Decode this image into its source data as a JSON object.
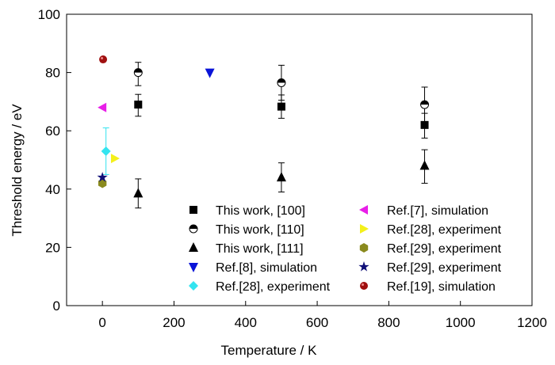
{
  "chart_data": {
    "type": "scatter",
    "xlabel": "Temperature / K",
    "ylabel": "Threshold energy / eV",
    "xlim": [
      -100,
      1200
    ],
    "ylim": [
      0,
      100
    ],
    "xticks": [
      0,
      200,
      400,
      600,
      800,
      1000,
      1200
    ],
    "yticks": [
      0,
      20,
      40,
      60,
      80,
      100
    ],
    "grid": false,
    "legend_placement": "bottom-right",
    "series": [
      {
        "name": "This work, [100]",
        "marker": "square",
        "color": "#000000",
        "points": [
          {
            "x": 100,
            "y": 69,
            "lo": 65,
            "hi": 72.5
          },
          {
            "x": 500,
            "y": 68.3,
            "lo": 64.3,
            "hi": 72.3
          },
          {
            "x": 900,
            "y": 62,
            "lo": 57.5,
            "hi": 66
          }
        ]
      },
      {
        "name": "This work, [110]",
        "marker": "halfcircle",
        "color": "#000000",
        "points": [
          {
            "x": 100,
            "y": 80,
            "lo": 75.5,
            "hi": 83.5
          },
          {
            "x": 500,
            "y": 76.5,
            "lo": 70.5,
            "hi": 82.5
          },
          {
            "x": 900,
            "y": 69,
            "lo": 63,
            "hi": 75
          }
        ]
      },
      {
        "name": "This work, [111]",
        "marker": "triangle-up",
        "color": "#000000",
        "points": [
          {
            "x": 100,
            "y": 38.5,
            "lo": 33.5,
            "hi": 43.5
          },
          {
            "x": 500,
            "y": 44,
            "lo": 39,
            "hi": 49
          },
          {
            "x": 900,
            "y": 48,
            "lo": 42,
            "hi": 53.5
          }
        ]
      },
      {
        "name": "Ref.[8], simulation",
        "marker": "triangle-down",
        "color": "#0a14d8",
        "points": [
          {
            "x": 300,
            "y": 80
          }
        ]
      },
      {
        "name": "Ref.[28], experiment",
        "marker": "diamond",
        "color": "#33e4f0",
        "points": [
          {
            "x": 10,
            "y": 53,
            "lo": 45,
            "hi": 61
          }
        ]
      },
      {
        "name": "Ref.[7], simulation",
        "marker": "triangle-left",
        "color": "#e81ee8",
        "points": [
          {
            "x": 0,
            "y": 68
          }
        ]
      },
      {
        "name": "Ref.[28], experiment",
        "marker": "triangle-right",
        "color": "#f4f01a",
        "points": [
          {
            "x": 35,
            "y": 50.5
          }
        ]
      },
      {
        "name": "Ref.[29], experiment",
        "marker": "hexagon",
        "color": "#8a8a1e",
        "points": [
          {
            "x": 0,
            "y": 42
          }
        ]
      },
      {
        "name": "Ref.[29], experiment",
        "marker": "star",
        "color": "#101078",
        "points": [
          {
            "x": 0,
            "y": 44
          }
        ]
      },
      {
        "name": "Ref.[19], simulation",
        "marker": "circle",
        "color": "#a01010",
        "points": [
          {
            "x": 2,
            "y": 84.5
          }
        ]
      }
    ]
  }
}
